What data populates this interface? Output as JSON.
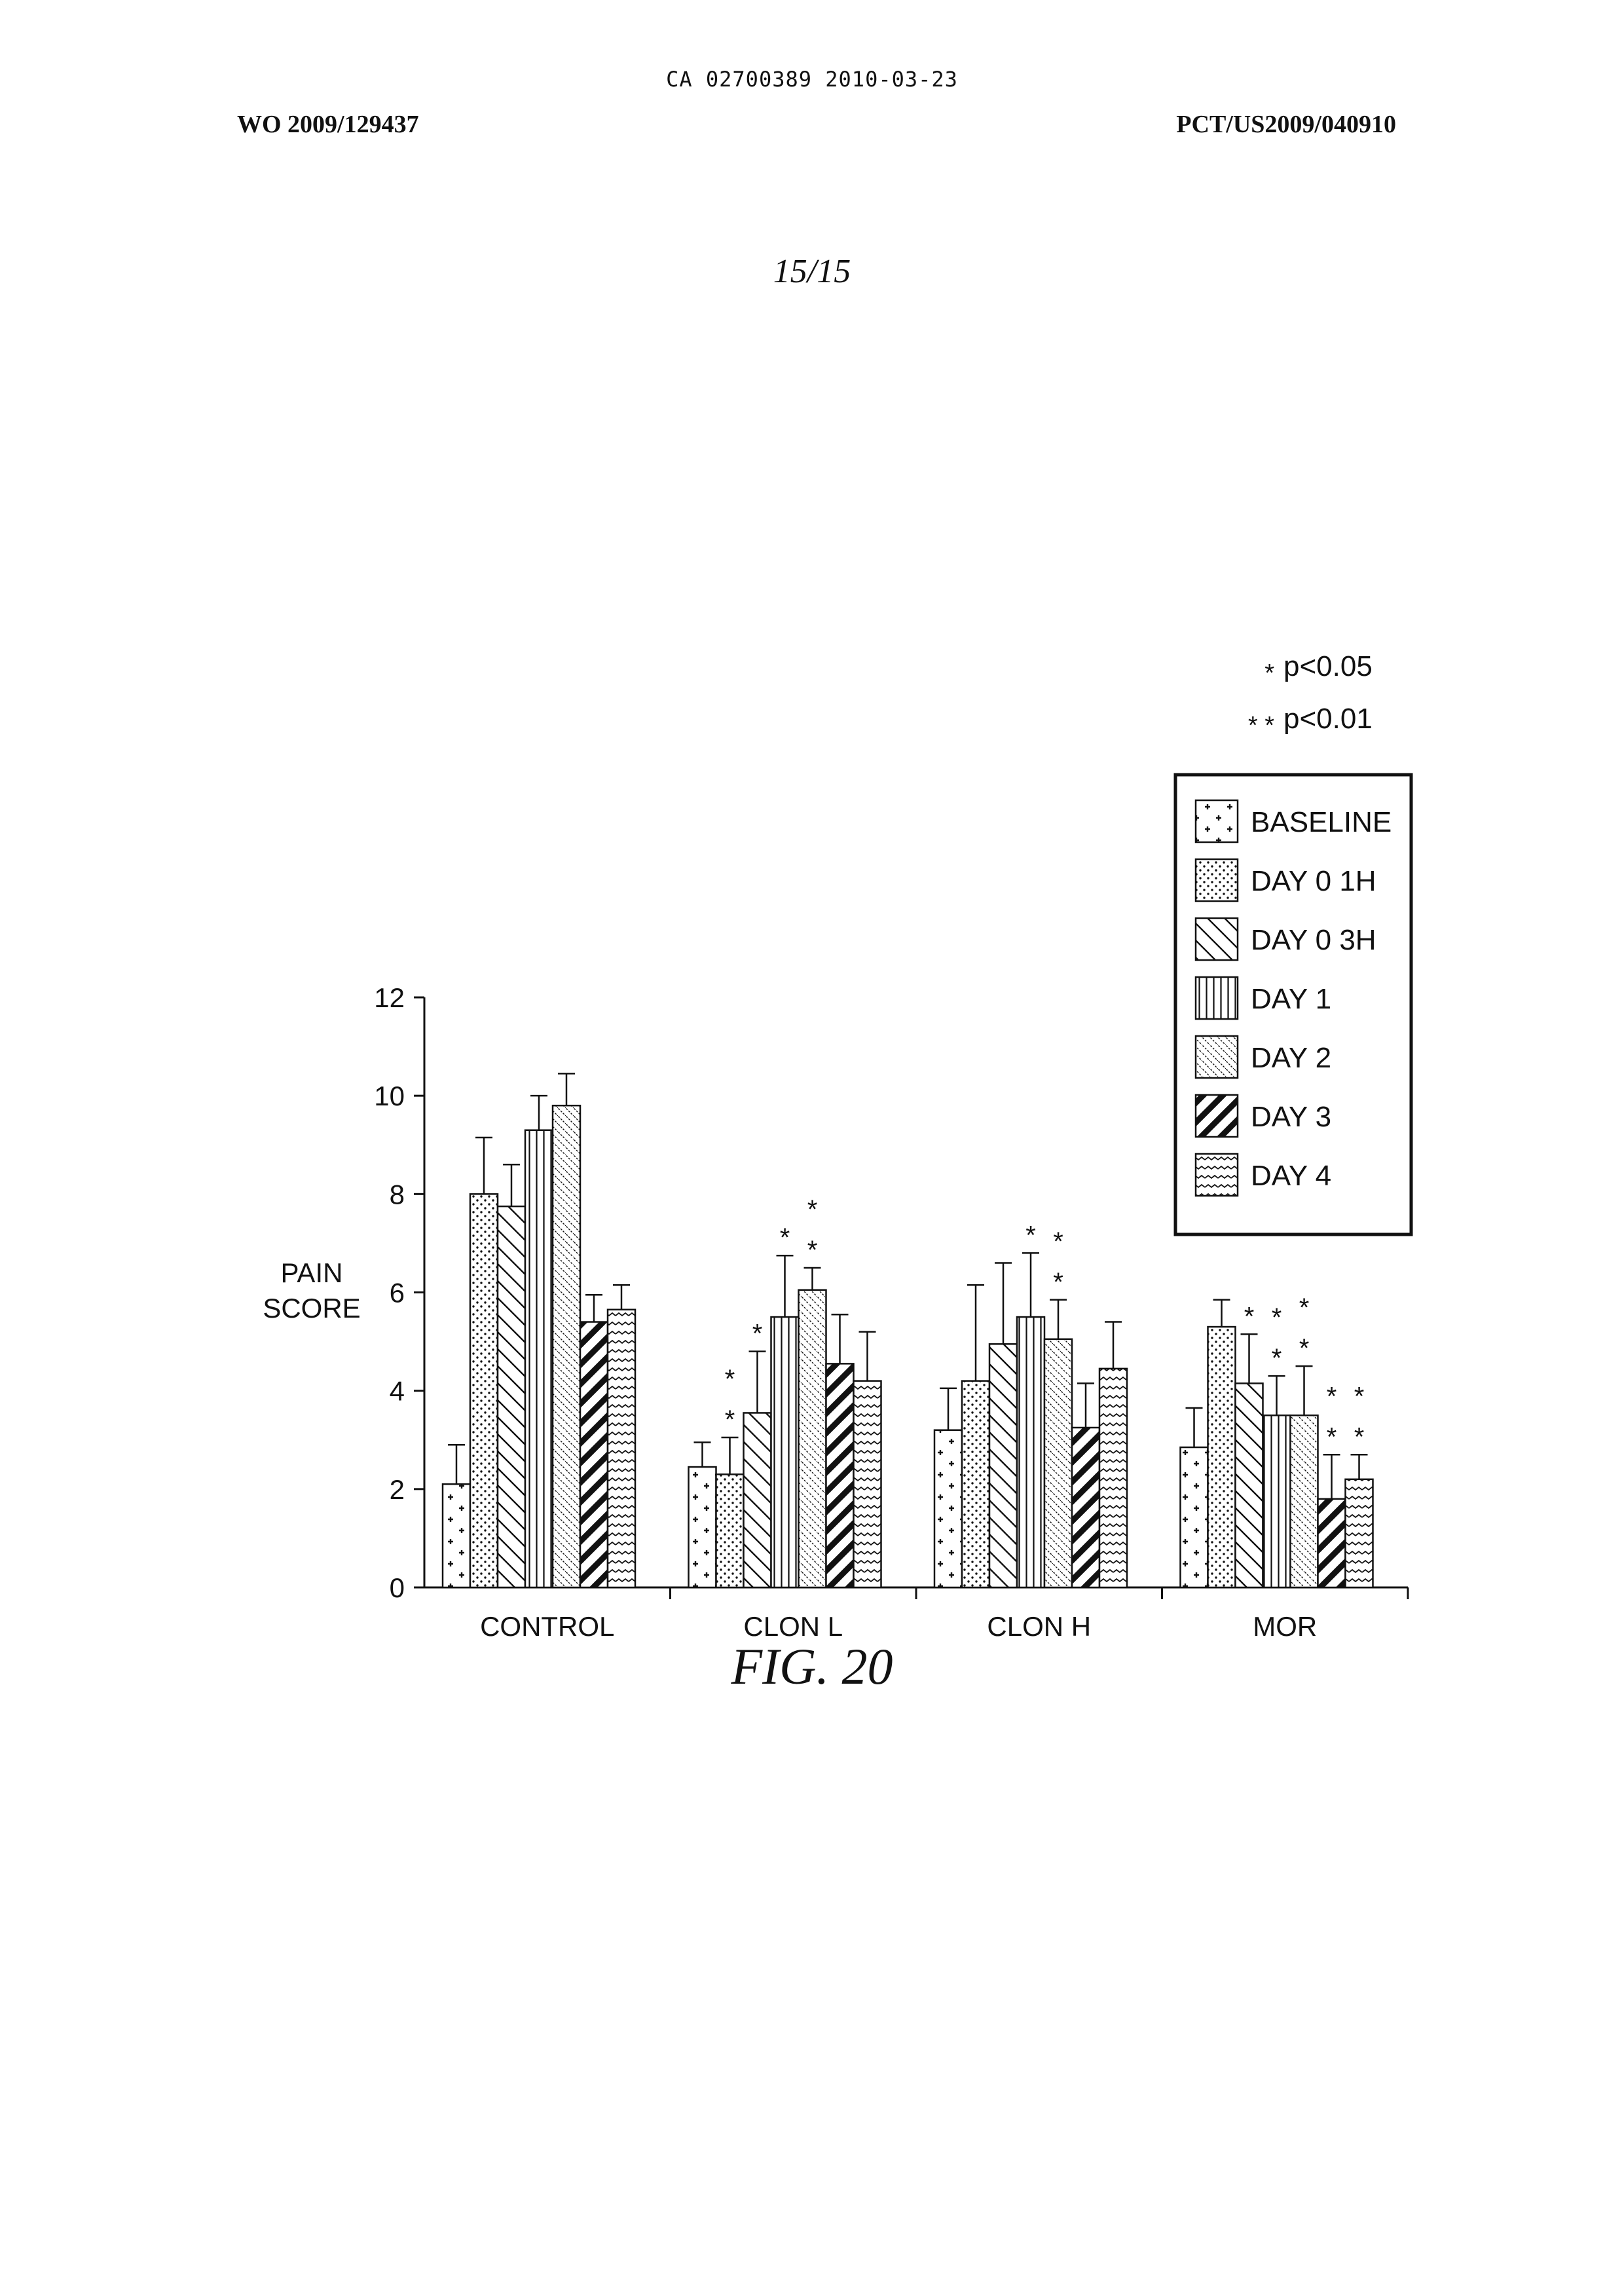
{
  "header": {
    "top_line": "CA 02700389 2010-03-23",
    "left": "WO 2009/129437",
    "right": "PCT/US2009/040910"
  },
  "page_number": "15/15",
  "figure_label": "FIG. 20",
  "significance": [
    {
      "marker": "*",
      "text": "p<0.05"
    },
    {
      "marker": "* *",
      "text": "p<0.01"
    }
  ],
  "chart_data": {
    "type": "bar",
    "title": "",
    "xlabel": "",
    "ylabel": "PAIN SCORE",
    "ylim": [
      0,
      12
    ],
    "yticks": [
      0,
      2,
      4,
      6,
      8,
      10,
      12
    ],
    "categories": [
      "CONTROL",
      "CLON L",
      "CLON H",
      "MOR"
    ],
    "legend_position": "top-right",
    "series": [
      {
        "name": "BASELINE",
        "pattern": "plus",
        "values": [
          2.1,
          2.45,
          3.2,
          2.85
        ],
        "errors": [
          0.8,
          0.5,
          0.85,
          0.8
        ],
        "stars": [
          "",
          "",
          "",
          ""
        ]
      },
      {
        "name": "DAY 0 1H",
        "pattern": "dots",
        "values": [
          8.0,
          2.3,
          4.2,
          5.3
        ],
        "errors": [
          1.15,
          0.75,
          1.95,
          0.55
        ],
        "stars": [
          "",
          "**",
          "",
          ""
        ]
      },
      {
        "name": "DAY 0 3H",
        "pattern": "diag-down",
        "values": [
          7.75,
          3.55,
          4.95,
          4.15
        ],
        "errors": [
          0.85,
          1.25,
          1.65,
          1.0
        ],
        "stars": [
          "",
          "*",
          "",
          "*"
        ]
      },
      {
        "name": "DAY 1",
        "pattern": "vertical",
        "values": [
          9.3,
          5.5,
          5.5,
          3.5
        ],
        "errors": [
          0.7,
          1.25,
          1.3,
          0.8
        ],
        "stars": [
          "",
          "*",
          "*",
          "**"
        ]
      },
      {
        "name": "DAY 2",
        "pattern": "fine-diag",
        "values": [
          9.8,
          6.05,
          5.05,
          3.5
        ],
        "errors": [
          0.65,
          0.45,
          0.8,
          1.0
        ],
        "stars": [
          "",
          "**",
          "**",
          "**"
        ]
      },
      {
        "name": "DAY 3",
        "pattern": "bold-diag",
        "values": [
          5.4,
          4.55,
          3.25,
          1.8
        ],
        "errors": [
          0.55,
          1.0,
          0.9,
          0.9
        ],
        "stars": [
          "",
          "",
          "",
          "**"
        ]
      },
      {
        "name": "DAY 4",
        "pattern": "wavy",
        "values": [
          5.65,
          4.2,
          4.45,
          2.2
        ],
        "errors": [
          0.5,
          1.0,
          0.95,
          0.5
        ],
        "stars": [
          "",
          "",
          "",
          "**"
        ]
      }
    ]
  }
}
